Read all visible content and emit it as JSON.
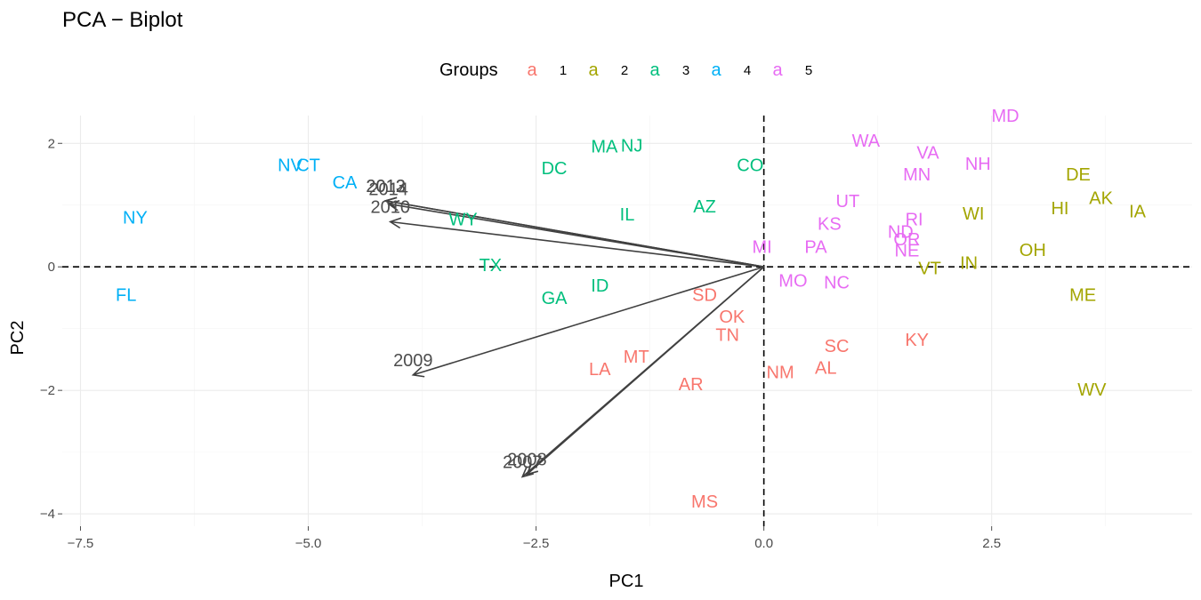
{
  "chart_data": {
    "type": "scatter",
    "title": "PCA − Biplot",
    "xlabel": "PC1",
    "ylabel": "PC2",
    "xlim": [
      -7.7,
      4.7
    ],
    "ylim": [
      -4.2,
      2.45
    ],
    "xticks": [
      -7.5,
      -5.0,
      -2.5,
      0.0,
      2.5
    ],
    "xtick_labels": [
      "−7.5",
      "−5.0",
      "−2.5",
      "0.0",
      "2.5"
    ],
    "yticks": [
      -4,
      -2,
      0,
      2
    ],
    "ytick_labels": [
      "−4",
      "−2",
      "0",
      "2"
    ],
    "grid": true,
    "reference_lines": {
      "x": 0,
      "y": 0
    },
    "legend": {
      "title": "Groups",
      "position": "top",
      "key_glyph": "a",
      "items": [
        {
          "label": "1",
          "color": "#F8766D"
        },
        {
          "label": "2",
          "color": "#A3A500"
        },
        {
          "label": "3",
          "color": "#00BF7D"
        },
        {
          "label": "4",
          "color": "#00B0F6"
        },
        {
          "label": "5",
          "color": "#E76BF3"
        }
      ]
    },
    "points": [
      {
        "label": "NY",
        "x": -6.9,
        "y": 0.8,
        "group": "4"
      },
      {
        "label": "FL",
        "x": -7.0,
        "y": -0.45,
        "group": "4"
      },
      {
        "label": "NV",
        "x": -5.2,
        "y": 1.65,
        "group": "4"
      },
      {
        "label": "CT",
        "x": -5.0,
        "y": 1.65,
        "group": "4"
      },
      {
        "label": "CA",
        "x": -4.6,
        "y": 1.37,
        "group": "4"
      },
      {
        "label": "DC",
        "x": -2.3,
        "y": 1.6,
        "group": "3"
      },
      {
        "label": "MA",
        "x": -1.75,
        "y": 1.95,
        "group": "3"
      },
      {
        "label": "NJ",
        "x": -1.45,
        "y": 1.97,
        "group": "3"
      },
      {
        "label": "CO",
        "x": -0.15,
        "y": 1.65,
        "group": "3"
      },
      {
        "label": "AZ",
        "x": -0.65,
        "y": 0.98,
        "group": "3"
      },
      {
        "label": "IL",
        "x": -1.5,
        "y": 0.85,
        "group": "3"
      },
      {
        "label": "WY",
        "x": -3.3,
        "y": 0.77,
        "group": "3"
      },
      {
        "label": "TX",
        "x": -3.0,
        "y": 0.03,
        "group": "3"
      },
      {
        "label": "ID",
        "x": -1.8,
        "y": -0.3,
        "group": "3"
      },
      {
        "label": "GA",
        "x": -2.3,
        "y": -0.5,
        "group": "3"
      },
      {
        "label": "SD",
        "x": -0.65,
        "y": -0.45,
        "group": "1"
      },
      {
        "label": "OK",
        "x": -0.35,
        "y": -0.8,
        "group": "1"
      },
      {
        "label": "TN",
        "x": -0.4,
        "y": -1.1,
        "group": "1"
      },
      {
        "label": "MT",
        "x": -1.4,
        "y": -1.45,
        "group": "1"
      },
      {
        "label": "LA",
        "x": -1.8,
        "y": -1.65,
        "group": "1"
      },
      {
        "label": "AR",
        "x": -0.8,
        "y": -1.9,
        "group": "1"
      },
      {
        "label": "NM",
        "x": 0.18,
        "y": -1.7,
        "group": "1"
      },
      {
        "label": "AL",
        "x": 0.68,
        "y": -1.63,
        "group": "1"
      },
      {
        "label": "SC",
        "x": 0.8,
        "y": -1.28,
        "group": "1"
      },
      {
        "label": "KY",
        "x": 1.68,
        "y": -1.18,
        "group": "1"
      },
      {
        "label": "MS",
        "x": -0.65,
        "y": -3.8,
        "group": "1"
      },
      {
        "label": "MD",
        "x": 2.65,
        "y": 2.45,
        "group": "5"
      },
      {
        "label": "WA",
        "x": 1.12,
        "y": 2.05,
        "group": "5"
      },
      {
        "label": "VA",
        "x": 1.8,
        "y": 1.85,
        "group": "5"
      },
      {
        "label": "NH",
        "x": 2.35,
        "y": 1.67,
        "group": "5"
      },
      {
        "label": "MN",
        "x": 1.68,
        "y": 1.5,
        "group": "5"
      },
      {
        "label": "UT",
        "x": 0.92,
        "y": 1.07,
        "group": "5"
      },
      {
        "label": "KS",
        "x": 0.72,
        "y": 0.7,
        "group": "5"
      },
      {
        "label": "RI",
        "x": 1.65,
        "y": 0.77,
        "group": "5"
      },
      {
        "label": "ND",
        "x": 1.5,
        "y": 0.57,
        "group": "5"
      },
      {
        "label": "OR",
        "x": 1.57,
        "y": 0.45,
        "group": "5"
      },
      {
        "label": "NE",
        "x": 1.57,
        "y": 0.27,
        "group": "5"
      },
      {
        "label": "MI",
        "x": -0.02,
        "y": 0.33,
        "group": "5"
      },
      {
        "label": "PA",
        "x": 0.57,
        "y": 0.33,
        "group": "5"
      },
      {
        "label": "MO",
        "x": 0.32,
        "y": -0.22,
        "group": "5"
      },
      {
        "label": "NC",
        "x": 0.8,
        "y": -0.25,
        "group": "5"
      },
      {
        "label": "DE",
        "x": 3.45,
        "y": 1.5,
        "group": "2"
      },
      {
        "label": "AK",
        "x": 3.7,
        "y": 1.12,
        "group": "2"
      },
      {
        "label": "IA",
        "x": 4.1,
        "y": 0.9,
        "group": "2"
      },
      {
        "label": "HI",
        "x": 3.25,
        "y": 0.95,
        "group": "2"
      },
      {
        "label": "WI",
        "x": 2.3,
        "y": 0.87,
        "group": "2"
      },
      {
        "label": "OH",
        "x": 2.95,
        "y": 0.28,
        "group": "2"
      },
      {
        "label": "IN",
        "x": 2.25,
        "y": 0.07,
        "group": "2"
      },
      {
        "label": "VT",
        "x": 1.82,
        "y": -0.02,
        "group": "2"
      },
      {
        "label": "ME",
        "x": 3.5,
        "y": -0.45,
        "group": "2"
      },
      {
        "label": "WV",
        "x": 3.6,
        "y": -1.98,
        "group": "2"
      }
    ],
    "vectors": [
      {
        "label": "2012",
        "x": -4.15,
        "y": 1.07
      },
      {
        "label": "2013",
        "x": -4.15,
        "y": 1.07
      },
      {
        "label": "2014",
        "x": -4.12,
        "y": 1.02
      },
      {
        "label": "2010",
        "x": -4.1,
        "y": 0.73
      },
      {
        "label": "2009",
        "x": -3.85,
        "y": -1.75
      },
      {
        "label": "2007",
        "x": -2.65,
        "y": -3.4
      },
      {
        "label": "2008",
        "x": -2.6,
        "y": -3.36
      }
    ]
  }
}
